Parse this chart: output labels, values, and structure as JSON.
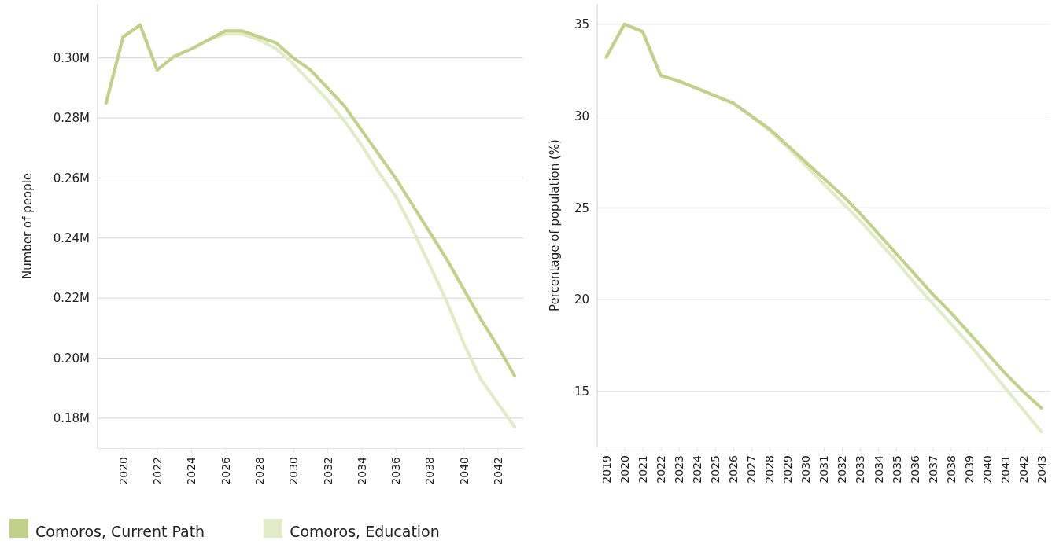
{
  "chart_data": [
    {
      "type": "line",
      "ylabel": "Number of people",
      "x": [
        2019,
        2020,
        2021,
        2022,
        2023,
        2024,
        2025,
        2026,
        2027,
        2028,
        2029,
        2030,
        2031,
        2032,
        2033,
        2034,
        2035,
        2036,
        2037,
        2038,
        2039,
        2040,
        2041,
        2042,
        2043
      ],
      "series": [
        {
          "name": "Comoros, Current Path",
          "color": "#c2d18a",
          "values": [
            0.285,
            0.307,
            0.311,
            0.296,
            0.3005,
            0.303,
            0.306,
            0.309,
            0.309,
            0.307,
            0.305,
            0.3,
            0.296,
            0.29,
            0.284,
            0.276,
            0.268,
            0.26,
            0.251,
            0.242,
            0.233,
            0.223,
            0.213,
            0.204,
            0.194
          ]
        },
        {
          "name": "Comoros, Education",
          "color": "#e2eac6",
          "values": [
            0.285,
            0.307,
            0.311,
            0.296,
            0.3005,
            0.303,
            0.306,
            0.308,
            0.308,
            0.306,
            0.303,
            0.298,
            0.292,
            0.286,
            0.279,
            0.271,
            0.262,
            0.254,
            0.243,
            0.231,
            0.219,
            0.205,
            0.193,
            0.185,
            0.177
          ]
        }
      ],
      "xlim": [
        2018.5,
        2043.5
      ],
      "xticks": [
        2020,
        2022,
        2024,
        2026,
        2028,
        2030,
        2032,
        2034,
        2036,
        2038,
        2040,
        2042
      ],
      "ylim": [
        0.17,
        0.318
      ],
      "yticks": [
        {
          "value": 0.18,
          "label": "0.18M"
        },
        {
          "value": 0.2,
          "label": "0.20M"
        },
        {
          "value": 0.22,
          "label": "0.22M"
        },
        {
          "value": 0.24,
          "label": "0.24M"
        },
        {
          "value": 0.26,
          "label": "0.26M"
        },
        {
          "value": 0.28,
          "label": "0.28M"
        },
        {
          "value": 0.3,
          "label": "0.30M"
        }
      ],
      "grid": "y",
      "legend": "bottom",
      "marker": "none",
      "line_style": "solid"
    },
    {
      "type": "line",
      "ylabel": "Percentage of population (%)",
      "x": [
        2019,
        2020,
        2021,
        2022,
        2023,
        2024,
        2025,
        2026,
        2027,
        2028,
        2029,
        2030,
        2031,
        2032,
        2033,
        2034,
        2035,
        2036,
        2037,
        2038,
        2039,
        2040,
        2041,
        2042,
        2043
      ],
      "series": [
        {
          "name": "Comoros, Current Path",
          "color": "#c2d18a",
          "values": [
            33.2,
            35.0,
            34.6,
            32.2,
            31.9,
            31.5,
            31.1,
            30.7,
            30.0,
            29.3,
            28.4,
            27.5,
            26.6,
            25.7,
            24.7,
            23.6,
            22.5,
            21.4,
            20.3,
            19.3,
            18.2,
            17.1,
            16.0,
            15.0,
            14.1
          ]
        },
        {
          "name": "Comoros, Education",
          "color": "#e2eac6",
          "values": [
            33.2,
            35.0,
            34.6,
            32.2,
            31.9,
            31.5,
            31.1,
            30.7,
            30.0,
            29.2,
            28.3,
            27.3,
            26.3,
            25.3,
            24.3,
            23.2,
            22.1,
            20.9,
            19.8,
            18.7,
            17.6,
            16.4,
            15.2,
            14.0,
            12.8
          ]
        }
      ],
      "xlim": [
        2018.5,
        2043.5
      ],
      "xticks": [
        2019,
        2020,
        2021,
        2022,
        2023,
        2024,
        2025,
        2026,
        2027,
        2028,
        2029,
        2030,
        2031,
        2032,
        2033,
        2034,
        2035,
        2036,
        2037,
        2038,
        2039,
        2040,
        2041,
        2042,
        2043
      ],
      "ylim": [
        12,
        36.1
      ],
      "yticks": [
        15,
        20,
        25,
        30,
        35
      ],
      "grid": "y",
      "legend": "bottom",
      "marker": "none",
      "line_style": "solid"
    }
  ]
}
